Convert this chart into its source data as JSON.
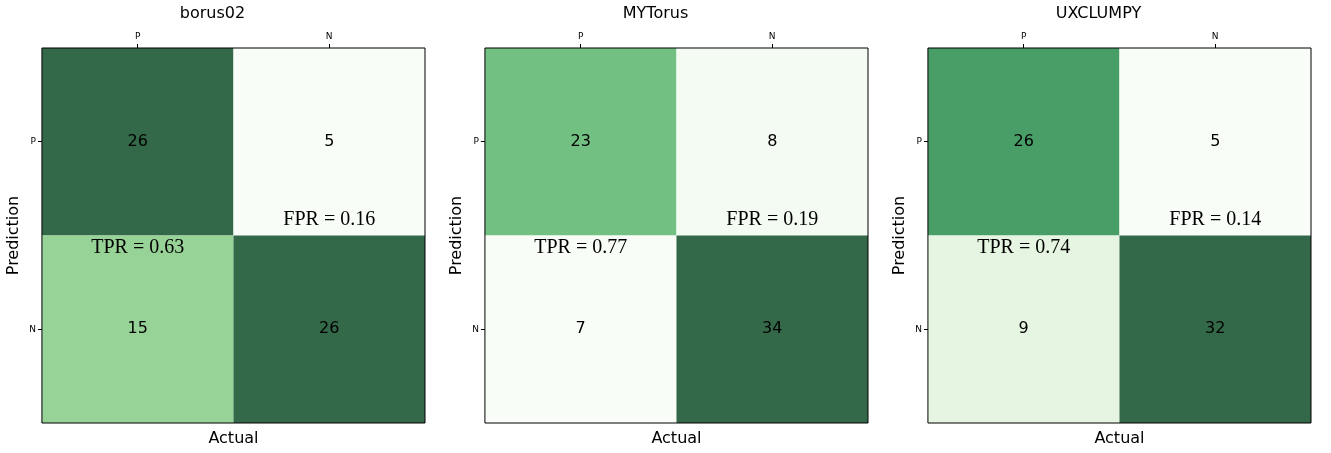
{
  "chart_data": [
    {
      "type": "heatmap",
      "title": "borus02",
      "xlabel": "Actual",
      "ylabel": "Prediction",
      "categories": [
        "P",
        "N"
      ],
      "y_categories": [
        "P",
        "N"
      ],
      "cells": [
        [
          26,
          5
        ],
        [
          15,
          26
        ]
      ],
      "data_labels": true,
      "annotations": [
        "TPR = 0.63",
        "FPR = 0.16"
      ]
    },
    {
      "type": "heatmap",
      "title": "MYTorus",
      "xlabel": "Actual",
      "ylabel": "Prediction",
      "categories": [
        "P",
        "N"
      ],
      "y_categories": [
        "P",
        "N"
      ],
      "cells": [
        [
          23,
          8
        ],
        [
          7,
          34
        ]
      ],
      "data_labels": true,
      "annotations": [
        "TPR = 0.77",
        "FPR = 0.19"
      ]
    },
    {
      "type": "heatmap",
      "title": "UXCLUMPY",
      "xlabel": "Actual",
      "ylabel": "Prediction",
      "categories": [
        "P",
        "N"
      ],
      "y_categories": [
        "P",
        "N"
      ],
      "cells": [
        [
          26,
          5
        ],
        [
          9,
          32
        ]
      ],
      "data_labels": true,
      "annotations": [
        "TPR = 0.74",
        "FPR = 0.14"
      ]
    }
  ]
}
